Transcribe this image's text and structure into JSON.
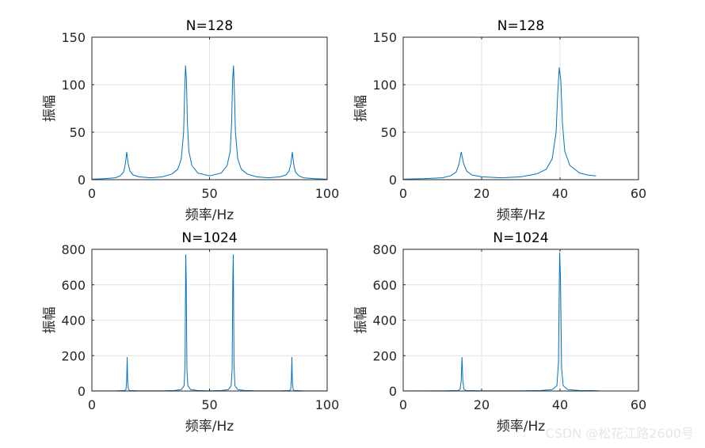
{
  "watermark": "CSDN @松花江路2600号",
  "colors": {
    "line": "#0072bd",
    "grid": "#e3e3e3",
    "axis": "#262626"
  },
  "chart_data": [
    {
      "type": "line",
      "title": "N=128",
      "xlabel": "频率/Hz",
      "ylabel": "振幅",
      "xlim": [
        0,
        100
      ],
      "ylim": [
        0,
        150
      ],
      "xticks": [
        0,
        50,
        100
      ],
      "yticks": [
        0,
        50,
        100,
        150
      ],
      "grid": true,
      "series": [
        {
          "x": [
            0,
            5,
            10,
            12,
            13.5,
            14.2,
            14.8,
            15.4,
            16.2,
            17.5,
            20,
            25,
            30,
            34,
            36.5,
            38,
            39,
            39.4,
            39.8,
            40.2,
            40.6,
            41.2,
            42.5,
            45,
            50,
            55,
            57.5,
            58.8,
            59.4,
            59.8,
            60.2,
            60.6,
            61,
            62,
            63.5,
            66,
            70,
            75,
            80,
            82.5,
            83.8,
            84.6,
            85.2,
            85.8,
            86.5,
            88,
            90,
            95,
            100
          ],
          "y": [
            0.5,
            1,
            2,
            4,
            8,
            16,
            29,
            17,
            9,
            5,
            3,
            2,
            3,
            6,
            11,
            22,
            50,
            90,
            120,
            105,
            60,
            30,
            15,
            7,
            4,
            7,
            15,
            30,
            60,
            105,
            120,
            90,
            50,
            22,
            11,
            6,
            3,
            2,
            3,
            5,
            9,
            17,
            29,
            16,
            8,
            4,
            2,
            1,
            0.5
          ]
        }
      ]
    },
    {
      "type": "line",
      "title": "N=128",
      "xlabel": "频率/Hz",
      "ylabel": "振幅",
      "xlim": [
        0,
        60
      ],
      "ylim": [
        0,
        150
      ],
      "xticks": [
        0,
        20,
        40,
        60
      ],
      "yticks": [
        0,
        50,
        100,
        150
      ],
      "grid": true,
      "series": [
        {
          "x": [
            0,
            5,
            10,
            12,
            13.5,
            14.2,
            14.8,
            15.4,
            16.2,
            17.5,
            20,
            25,
            30,
            34,
            36.5,
            38,
            39,
            39.4,
            39.8,
            40.2,
            40.6,
            41.2,
            42.5,
            45,
            47,
            49.2
          ],
          "y": [
            0.5,
            1,
            2,
            4,
            8,
            16,
            29,
            17,
            9,
            5,
            3,
            2,
            3,
            6,
            11,
            22,
            50,
            90,
            118,
            105,
            60,
            30,
            15,
            7,
            5,
            4
          ]
        }
      ]
    },
    {
      "type": "line",
      "title": "N=1024",
      "xlabel": "频率/Hz",
      "ylabel": "振幅",
      "xlim": [
        0,
        100
      ],
      "ylim": [
        0,
        800
      ],
      "xticks": [
        0,
        50,
        100
      ],
      "yticks": [
        0,
        200,
        400,
        600,
        800
      ],
      "grid": true,
      "series": [
        {
          "x": [
            0,
            10,
            14,
            14.5,
            14.8,
            15,
            15.2,
            15.5,
            16,
            20,
            30,
            35,
            38,
            39.2,
            39.6,
            39.9,
            40.1,
            40.4,
            40.8,
            42,
            45,
            50,
            55,
            58,
            59.2,
            59.6,
            59.9,
            60.1,
            60.4,
            60.8,
            62,
            65,
            70,
            80,
            84,
            84.5,
            84.8,
            85,
            85.2,
            85.5,
            86,
            90,
            100
          ],
          "y": [
            0.5,
            1,
            3,
            10,
            60,
            190,
            60,
            10,
            3,
            1,
            1,
            3,
            8,
            30,
            150,
            770,
            620,
            120,
            30,
            8,
            3,
            1,
            3,
            8,
            30,
            120,
            620,
            770,
            150,
            30,
            8,
            3,
            1,
            1,
            3,
            10,
            60,
            190,
            60,
            10,
            3,
            1,
            0.5
          ]
        }
      ]
    },
    {
      "type": "line",
      "title": "N=1024",
      "xlabel": "频率/Hz",
      "ylabel": "振幅",
      "xlim": [
        0,
        60
      ],
      "ylim": [
        0,
        800
      ],
      "xticks": [
        0,
        20,
        40,
        60
      ],
      "yticks": [
        0,
        200,
        400,
        600,
        800
      ],
      "grid": true,
      "series": [
        {
          "x": [
            0,
            10,
            14,
            14.5,
            14.8,
            15,
            15.2,
            15.5,
            16,
            20,
            30,
            35,
            38,
            39.2,
            39.6,
            39.9,
            40.1,
            40.4,
            40.8,
            42,
            45,
            48,
            49.9
          ],
          "y": [
            0.5,
            1,
            3,
            10,
            60,
            190,
            60,
            10,
            3,
            1,
            1,
            3,
            8,
            30,
            160,
            780,
            650,
            130,
            30,
            8,
            3,
            2,
            1
          ]
        }
      ]
    }
  ]
}
